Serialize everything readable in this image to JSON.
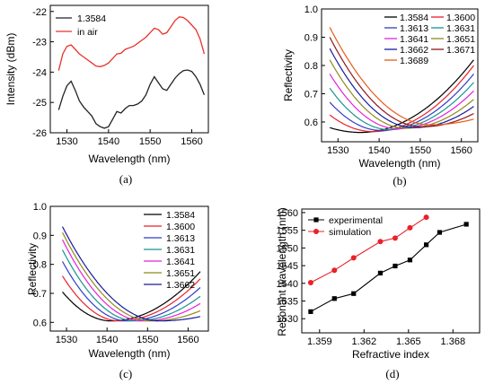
{
  "chart_data": [
    {
      "id": "a",
      "type": "line",
      "caption": "(a)",
      "xlabel": "Wavelength (nm)",
      "ylabel": "Intensity (dBm)",
      "xlim": [
        1526,
        1564
      ],
      "ylim": [
        -26,
        -21.8
      ],
      "xticks": [
        1530,
        1540,
        1550,
        1560
      ],
      "yticks": [
        -26,
        -25,
        -24,
        -23,
        -22
      ],
      "legend": "top-left",
      "grid": false,
      "series": [
        {
          "name": "1.3584",
          "color": "#222222",
          "marker": "none",
          "x": [
            1528,
            1529,
            1530,
            1531,
            1532,
            1533,
            1534,
            1535,
            1536,
            1537,
            1538,
            1539,
            1540,
            1541,
            1542,
            1543,
            1544,
            1545,
            1546,
            1547,
            1548,
            1549,
            1550,
            1551,
            1552,
            1553,
            1554,
            1555,
            1556,
            1557,
            1558,
            1559,
            1560,
            1561,
            1562,
            1563
          ],
          "y": [
            -25.25,
            -24.8,
            -24.45,
            -24.3,
            -24.6,
            -24.95,
            -25.15,
            -25.3,
            -25.45,
            -25.7,
            -25.8,
            -25.85,
            -25.8,
            -25.55,
            -25.3,
            -25.35,
            -25.2,
            -25.1,
            -25.1,
            -25.05,
            -24.95,
            -24.75,
            -24.4,
            -24.15,
            -24.35,
            -24.55,
            -24.6,
            -24.4,
            -24.2,
            -24.05,
            -23.95,
            -23.93,
            -23.98,
            -24.15,
            -24.4,
            -24.75
          ]
        },
        {
          "name": "in air",
          "color": "#e8322a",
          "marker": "none",
          "x": [
            1528,
            1529,
            1530,
            1531,
            1532,
            1533,
            1534,
            1535,
            1536,
            1537,
            1538,
            1539,
            1540,
            1541,
            1542,
            1543,
            1544,
            1545,
            1546,
            1547,
            1548,
            1549,
            1550,
            1551,
            1552,
            1553,
            1554,
            1555,
            1556,
            1557,
            1558,
            1559,
            1560,
            1561,
            1562,
            1563
          ],
          "y": [
            -23.95,
            -23.4,
            -23.15,
            -23.1,
            -23.25,
            -23.4,
            -23.5,
            -23.6,
            -23.7,
            -23.8,
            -23.82,
            -23.78,
            -23.7,
            -23.55,
            -23.4,
            -23.38,
            -23.25,
            -23.2,
            -23.15,
            -23.05,
            -22.95,
            -22.85,
            -22.7,
            -22.55,
            -22.6,
            -22.75,
            -22.7,
            -22.5,
            -22.3,
            -22.18,
            -22.2,
            -22.3,
            -22.45,
            -22.6,
            -22.9,
            -23.4
          ]
        }
      ]
    },
    {
      "id": "b",
      "type": "line",
      "caption": "(b)",
      "xlabel": "Wavelength (nm)",
      "ylabel": "Reflectivity",
      "xlim": [
        1526,
        1564
      ],
      "ylim": [
        0.53,
        1.0
      ],
      "xticks": [
        1530,
        1540,
        1550,
        1560
      ],
      "yticks": [
        0.6,
        0.7,
        0.8,
        0.9,
        1.0
      ],
      "legend": "top-right, two columns",
      "grid": false,
      "series": [
        {
          "name": "1.3584",
          "color": "#000000",
          "min_x": 1535.5,
          "min_y": 0.563,
          "y_at_1528": 0.58,
          "y_at_1563": 0.82
        },
        {
          "name": "1.3600",
          "color": "#e8212a",
          "min_x": 1538.5,
          "min_y": 0.566,
          "y_at_1528": 0.625,
          "y_at_1563": 0.8
        },
        {
          "name": "1.3613",
          "color": "#2f3ec4",
          "min_x": 1540.5,
          "min_y": 0.57,
          "y_at_1528": 0.67,
          "y_at_1563": 0.77
        },
        {
          "name": "1.3631",
          "color": "#17948f",
          "min_x": 1542.5,
          "min_y": 0.573,
          "y_at_1528": 0.72,
          "y_at_1563": 0.74
        },
        {
          "name": "1.3641",
          "color": "#e620d8",
          "min_x": 1544.5,
          "min_y": 0.576,
          "y_at_1528": 0.77,
          "y_at_1563": 0.71
        },
        {
          "name": "1.3651",
          "color": "#8c8c1a",
          "min_x": 1546.5,
          "min_y": 0.578,
          "y_at_1528": 0.82,
          "y_at_1563": 0.68
        },
        {
          "name": "1.3662",
          "color": "#1a1a9e",
          "min_x": 1548.5,
          "min_y": 0.58,
          "y_at_1528": 0.86,
          "y_at_1563": 0.655
        },
        {
          "name": "1.3671",
          "color": "#8b1a1a",
          "min_x": 1550.5,
          "min_y": 0.583,
          "y_at_1528": 0.9,
          "y_at_1563": 0.63
        },
        {
          "name": "1.3689",
          "color": "#e85a1a",
          "min_x": 1552.5,
          "min_y": 0.59,
          "y_at_1528": 0.935,
          "y_at_1563": 0.61
        }
      ]
    },
    {
      "id": "c",
      "type": "line",
      "caption": "(c)",
      "xlabel": "Wavelength (nm)",
      "ylabel": "Reflectivity",
      "xlim": [
        1526,
        1565
      ],
      "ylim": [
        0.57,
        1.0
      ],
      "xticks": [
        1530,
        1540,
        1550,
        1560
      ],
      "yticks": [
        0.6,
        0.7,
        0.8,
        0.9,
        1.0
      ],
      "legend": "top-right",
      "grid": false,
      "series": [
        {
          "name": "1.3584",
          "color": "#000000",
          "min_x": 1541.0,
          "min_y": 0.605,
          "y_at_1529": 0.705,
          "y_at_1563": 0.775
        },
        {
          "name": "1.3600",
          "color": "#e8212a",
          "min_x": 1543.0,
          "min_y": 0.605,
          "y_at_1529": 0.76,
          "y_at_1563": 0.75
        },
        {
          "name": "1.3613",
          "color": "#2f3ec4",
          "min_x": 1545.0,
          "min_y": 0.605,
          "y_at_1529": 0.81,
          "y_at_1563": 0.72
        },
        {
          "name": "1.3631",
          "color": "#17948f",
          "min_x": 1547.0,
          "min_y": 0.605,
          "y_at_1529": 0.85,
          "y_at_1563": 0.69
        },
        {
          "name": "1.3641",
          "color": "#e620d8",
          "min_x": 1549.0,
          "min_y": 0.605,
          "y_at_1529": 0.885,
          "y_at_1563": 0.665
        },
        {
          "name": "1.3651",
          "color": "#8c8c1a",
          "min_x": 1551.0,
          "min_y": 0.605,
          "y_at_1529": 0.91,
          "y_at_1563": 0.64
        },
        {
          "name": "1.3662",
          "color": "#1a1a9e",
          "min_x": 1553.0,
          "min_y": 0.605,
          "y_at_1529": 0.93,
          "y_at_1563": 0.62
        }
      ]
    },
    {
      "id": "d",
      "type": "line",
      "caption": "(d)",
      "xlabel": "Refractive index",
      "ylabel": "Resonant wavelength (nm)",
      "xlim": [
        1.3578,
        1.3698
      ],
      "ylim": [
        1526,
        1561
      ],
      "xticks": [
        1.359,
        1.362,
        1.365,
        1.368
      ],
      "yticks": [
        1530,
        1535,
        1540,
        1545,
        1550,
        1555,
        1560
      ],
      "legend": "top-left",
      "grid": false,
      "series": [
        {
          "name": "experimental",
          "color": "#000000",
          "marker": "square",
          "x": [
            1.3584,
            1.36,
            1.3613,
            1.3631,
            1.3641,
            1.3651,
            1.3662,
            1.3671,
            1.3689
          ],
          "y": [
            1532,
            1535.7,
            1537.1,
            1542.9,
            1544.9,
            1546.6,
            1550.9,
            1554.4,
            1556.7
          ]
        },
        {
          "name": "simulation",
          "color": "#e8212a",
          "marker": "circle",
          "x": [
            1.3584,
            1.36,
            1.3613,
            1.3631,
            1.3641,
            1.3651,
            1.3662
          ],
          "y": [
            1540.2,
            1543.7,
            1547.2,
            1551.8,
            1552.8,
            1555.7,
            1558.7
          ]
        }
      ]
    }
  ]
}
